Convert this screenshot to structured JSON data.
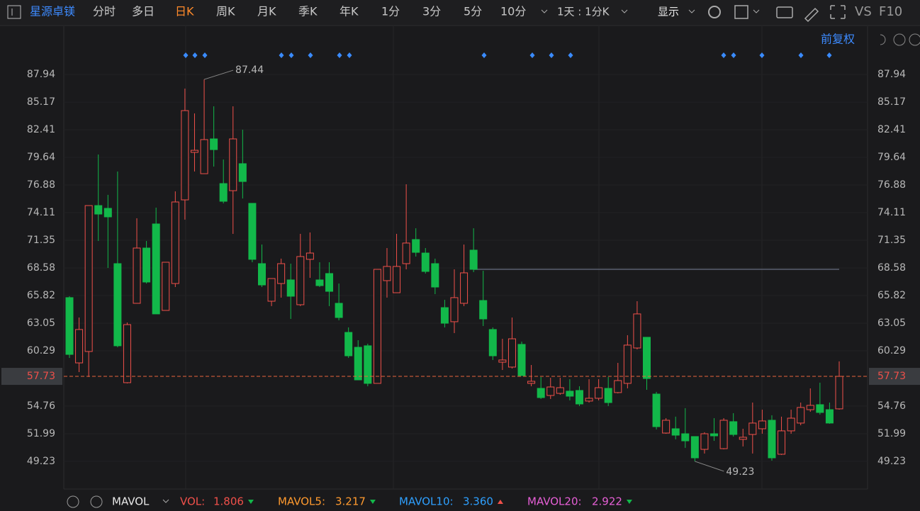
{
  "toolbar": {
    "stock_name": "星源卓镁",
    "tabs": [
      "分时",
      "多日",
      "日K",
      "周K",
      "月K",
      "季K",
      "年K",
      "1分",
      "3分",
      "5分",
      "10分"
    ],
    "period": "1天 : 1分K",
    "display": "显示",
    "vs": "VS",
    "f10": "F10"
  },
  "adjust": "前复权",
  "chart_data": {
    "type": "candlestick",
    "open": [
      65.61,
      59.08,
      60.22,
      74.82,
      74.54,
      69.01,
      57.1,
      65.04,
      70.57,
      72.98,
      64.33,
      67.02,
      75.39,
      80.14,
      78.01,
      81.49,
      77.02,
      76.31,
      79.01,
      75.04,
      69.01,
      65.25,
      67.02,
      67.38,
      64.9,
      69.44,
      67.38,
      68.02,
      65.04,
      62.13,
      60.64,
      60.79,
      57.03,
      67.31,
      66.1,
      69.01,
      71.42,
      70.07,
      69.01,
      64.61,
      63.2,
      65.04,
      70.36,
      65.32,
      62.42,
      59.15,
      58.66,
      60.93,
      57.03,
      56.53,
      55.82,
      56.03,
      56.25,
      56.32,
      55.26,
      55.54,
      56.53,
      56.11,
      57.03,
      60.57,
      61.64,
      55.96,
      52.06,
      52.49,
      51.99,
      51.71,
      50.43,
      51.99,
      50.5,
      53.2,
      51.43,
      51.92,
      52.49,
      53.34,
      49.94,
      52.28,
      53.06,
      54.4,
      54.9,
      54.4,
      54.48
    ],
    "close": [
      59.93,
      62.42,
      74.82,
      73.97,
      73.69,
      60.79,
      62.91,
      70.57,
      67.17,
      63.98,
      69.15,
      75.18,
      84.32,
      80.35,
      81.42,
      80.42,
      75.25,
      81.49,
      77.23,
      69.44,
      66.88,
      67.52,
      69.01,
      65.75,
      69.72,
      70.07,
      66.81,
      66.24,
      63.62,
      59.79,
      57.38,
      57.03,
      68.44,
      68.73,
      68.73,
      71.07,
      70.14,
      68.23,
      66.67,
      63.05,
      65.61,
      68.09,
      68.44,
      63.48,
      59.79,
      59.37,
      61.49,
      57.81,
      57.24,
      55.61,
      56.67,
      56.6,
      55.75,
      54.97,
      55.54,
      56.6,
      55.11,
      57.31,
      60.86,
      63.98,
      57.52,
      52.7,
      53.34,
      51.85,
      51.28,
      49.58,
      51.99,
      51.78,
      53.34,
      51.92,
      51.64,
      53.06,
      53.27,
      49.58,
      52.28,
      53.55,
      54.62,
      54.83,
      54.12,
      53.06,
      57.73
    ],
    "high": [
      65.75,
      63.62,
      74.82,
      79.93,
      75.89,
      78.23,
      63.12,
      73.55,
      71.28,
      74.61,
      69.15,
      76.24,
      86.52,
      84.04,
      87.44,
      84.75,
      79.43,
      84.75,
      82.41,
      75.04,
      70.92,
      67.52,
      69.51,
      69.01,
      71.99,
      72.13,
      69.15,
      69.15,
      67.02,
      62.63,
      61.35,
      61.0,
      68.44,
      70.57,
      71.99,
      76.95,
      72.55,
      70.57,
      69.51,
      65.39,
      68.44,
      70.92,
      72.55,
      68.3,
      62.63,
      61.49,
      63.62,
      61.21,
      58.87,
      57.67,
      57.59,
      57.59,
      57.45,
      56.74,
      57.45,
      57.45,
      57.67,
      59.08,
      61.85,
      65.25,
      61.64,
      56.18,
      53.55,
      53.7,
      54.55,
      51.71,
      52.14,
      53.55,
      53.55,
      54.05,
      52.49,
      55.11,
      54.4,
      53.84,
      53.7,
      54.4,
      55.11,
      56.53,
      57.1,
      55.11,
      59.23
    ],
    "low": [
      59.58,
      58.16,
      57.67,
      71.28,
      68.58,
      60.64,
      57.03,
      65.04,
      67.02,
      63.98,
      64.33,
      66.67,
      73.41,
      78.23,
      78.01,
      78.72,
      75.04,
      71.99,
      75.53,
      69.15,
      66.67,
      64.76,
      65.61,
      63.48,
      64.76,
      67.59,
      66.67,
      64.76,
      63.34,
      59.58,
      57.38,
      56.74,
      57.03,
      65.61,
      66.1,
      68.44,
      69.72,
      68.02,
      65.96,
      62.63,
      62.06,
      64.76,
      68.16,
      62.77,
      59.37,
      58.37,
      58.52,
      57.81,
      56.74,
      55.47,
      55.47,
      55.89,
      55.33,
      54.76,
      55.11,
      55.33,
      54.76,
      56.03,
      56.53,
      60.43,
      56.39,
      52.42,
      51.99,
      51.43,
      50.58,
      49.23,
      50.01,
      51.28,
      50.43,
      51.71,
      50.72,
      50.01,
      51.99,
      49.3,
      49.87,
      51.99,
      52.84,
      54.19,
      53.91,
      52.99,
      54.4
    ],
    "ylim": [
      46.46,
      92.55
    ],
    "yticks": [
      49.23,
      51.99,
      54.76,
      60.29,
      63.05,
      65.82,
      68.58,
      71.35,
      74.11,
      76.88,
      79.64,
      82.41,
      85.17,
      87.94
    ],
    "grid": true,
    "reference_line": 68.44,
    "up_color": "#f0504a",
    "down_color": "#12b84a",
    "last_color": "#e8643c"
  },
  "indicators": {
    "name": "MAVOL",
    "items": [
      {
        "label": "VOL:",
        "value": "1.806",
        "color": "#f0504a",
        "trend": "down"
      },
      {
        "label": "MAVOL5:",
        "value": "3.217",
        "color": "#ff9a2e",
        "trend": "down"
      },
      {
        "label": "MAVOL10:",
        "value": "3.360",
        "color": "#2ea0ff",
        "trend": "up"
      },
      {
        "label": "MAVOL20:",
        "value": "2.922",
        "color": "#e65fd6",
        "trend": "down"
      }
    ]
  }
}
